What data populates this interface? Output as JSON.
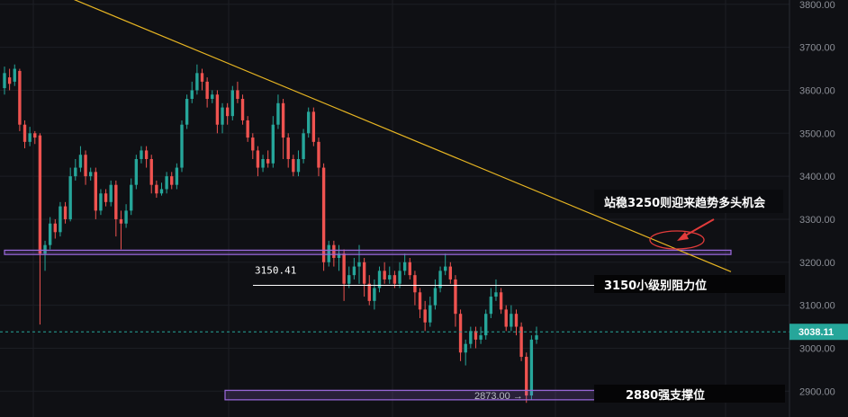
{
  "chart_data": {
    "type": "candlestick",
    "y_axis": {
      "position": "right",
      "ylim": [
        2840,
        3810
      ],
      "ticks": [
        "3800.00",
        "3700.00",
        "3600.00",
        "3500.00",
        "3400.00",
        "3300.00",
        "3200.00",
        "3100.00",
        "3000.00",
        "2900.00"
      ]
    },
    "grid": true,
    "colors": {
      "up": "#26a69a",
      "down": "#ef5350",
      "trendline": "#e6b422",
      "zone_border": "#9c6ade",
      "current_price_tag": "#26a69a",
      "background": "#0f1014"
    },
    "current_price": {
      "value": 3038.11,
      "label": "3038.11"
    },
    "low_marker": {
      "value": 2873.0,
      "label": "2873.00 →"
    },
    "trendline": {
      "from_price": 3820,
      "to_price": 3178
    },
    "zones": [
      {
        "name": "resistance-zone",
        "low": 3218,
        "high": 3228
      },
      {
        "name": "support-zone",
        "low": 2880,
        "high": 2902
      }
    ],
    "level_line": {
      "value": 3150.41,
      "label": "3150.41"
    },
    "annotations": [
      {
        "name": "trend-break-note",
        "text": "站稳3250则迎来趋势多头机会"
      },
      {
        "name": "resistance-note",
        "text": "3150小级别阻力位"
      },
      {
        "name": "support-note",
        "text": "2880强支撑位"
      }
    ],
    "candles": [
      [
        3605,
        3640,
        3655,
        3590
      ],
      [
        3630,
        3615,
        3650,
        3600
      ],
      [
        3620,
        3650,
        3660,
        3610
      ],
      [
        3645,
        3520,
        3650,
        3505
      ],
      [
        3520,
        3480,
        3530,
        3465
      ],
      [
        3480,
        3500,
        3515,
        3470
      ],
      [
        3500,
        3490,
        3505,
        3475
      ],
      [
        3495,
        3220,
        3500,
        3055
      ],
      [
        3220,
        3240,
        3250,
        3180
      ],
      [
        3240,
        3290,
        3305,
        3230
      ],
      [
        3290,
        3270,
        3300,
        3255
      ],
      [
        3270,
        3330,
        3340,
        3260
      ],
      [
        3330,
        3300,
        3340,
        3290
      ],
      [
        3300,
        3400,
        3420,
        3295
      ],
      [
        3400,
        3420,
        3440,
        3390
      ],
      [
        3420,
        3450,
        3470,
        3410
      ],
      [
        3450,
        3400,
        3460,
        3380
      ],
      [
        3400,
        3410,
        3420,
        3390
      ],
      [
        3410,
        3320,
        3420,
        3300
      ],
      [
        3320,
        3360,
        3370,
        3310
      ],
      [
        3360,
        3340,
        3370,
        3330
      ],
      [
        3340,
        3380,
        3390,
        3330
      ],
      [
        3380,
        3300,
        3390,
        3260
      ],
      [
        3300,
        3290,
        3320,
        3230
      ],
      [
        3290,
        3320,
        3335,
        3280
      ],
      [
        3320,
        3380,
        3395,
        3310
      ],
      [
        3380,
        3440,
        3450,
        3370
      ],
      [
        3440,
        3460,
        3470,
        3430
      ],
      [
        3460,
        3440,
        3470,
        3420
      ],
      [
        3440,
        3380,
        3450,
        3360
      ],
      [
        3380,
        3360,
        3390,
        3350
      ],
      [
        3360,
        3370,
        3385,
        3355
      ],
      [
        3370,
        3400,
        3410,
        3360
      ],
      [
        3400,
        3380,
        3410,
        3370
      ],
      [
        3380,
        3420,
        3430,
        3370
      ],
      [
        3420,
        3520,
        3530,
        3410
      ],
      [
        3520,
        3580,
        3590,
        3510
      ],
      [
        3580,
        3600,
        3620,
        3570
      ],
      [
        3600,
        3640,
        3660,
        3590
      ],
      [
        3640,
        3620,
        3650,
        3600
      ],
      [
        3620,
        3580,
        3630,
        3560
      ],
      [
        3580,
        3590,
        3600,
        3570
      ],
      [
        3590,
        3520,
        3600,
        3500
      ],
      [
        3520,
        3560,
        3570,
        3500
      ],
      [
        3560,
        3540,
        3570,
        3520
      ],
      [
        3540,
        3600,
        3610,
        3530
      ],
      [
        3600,
        3580,
        3620,
        3570
      ],
      [
        3580,
        3530,
        3590,
        3520
      ],
      [
        3530,
        3490,
        3540,
        3480
      ],
      [
        3490,
        3460,
        3500,
        3440
      ],
      [
        3460,
        3420,
        3470,
        3400
      ],
      [
        3420,
        3440,
        3450,
        3410
      ],
      [
        3440,
        3430,
        3460,
        3420
      ],
      [
        3430,
        3520,
        3540,
        3420
      ],
      [
        3520,
        3570,
        3590,
        3510
      ],
      [
        3570,
        3490,
        3580,
        3440
      ],
      [
        3490,
        3440,
        3500,
        3420
      ],
      [
        3440,
        3410,
        3450,
        3400
      ],
      [
        3410,
        3440,
        3460,
        3400
      ],
      [
        3440,
        3500,
        3510,
        3430
      ],
      [
        3500,
        3550,
        3560,
        3490
      ],
      [
        3550,
        3480,
        3560,
        3470
      ],
      [
        3480,
        3420,
        3490,
        3400
      ],
      [
        3420,
        3200,
        3430,
        3180
      ],
      [
        3200,
        3240,
        3250,
        3190
      ],
      [
        3240,
        3210,
        3250,
        3190
      ],
      [
        3210,
        3220,
        3240,
        3180
      ],
      [
        3220,
        3150,
        3230,
        3110
      ],
      [
        3150,
        3170,
        3190,
        3140
      ],
      [
        3170,
        3190,
        3210,
        3160
      ],
      [
        3190,
        3200,
        3240,
        3150
      ],
      [
        3200,
        3150,
        3210,
        3120
      ],
      [
        3150,
        3110,
        3170,
        3100
      ],
      [
        3110,
        3140,
        3160,
        3090
      ],
      [
        3140,
        3180,
        3190,
        3130
      ],
      [
        3180,
        3160,
        3200,
        3150
      ],
      [
        3160,
        3170,
        3190,
        3150
      ],
      [
        3170,
        3150,
        3180,
        3140
      ],
      [
        3150,
        3180,
        3200,
        3140
      ],
      [
        3180,
        3200,
        3220,
        3170
      ],
      [
        3200,
        3170,
        3210,
        3160
      ],
      [
        3170,
        3130,
        3180,
        3100
      ],
      [
        3130,
        3090,
        3140,
        3070
      ],
      [
        3090,
        3060,
        3110,
        3040
      ],
      [
        3060,
        3100,
        3120,
        3050
      ],
      [
        3100,
        3140,
        3160,
        3090
      ],
      [
        3140,
        3180,
        3190,
        3130
      ],
      [
        3180,
        3190,
        3220,
        3170
      ],
      [
        3190,
        3160,
        3200,
        3150
      ],
      [
        3160,
        3080,
        3170,
        3050
      ],
      [
        3080,
        2990,
        3090,
        2970
      ],
      [
        2990,
        3010,
        3020,
        2960
      ],
      [
        3010,
        3040,
        3050,
        3000
      ],
      [
        3040,
        3020,
        3050,
        3000
      ],
      [
        3020,
        3030,
        3050,
        3010
      ],
      [
        3030,
        3080,
        3090,
        3020
      ],
      [
        3080,
        3120,
        3140,
        3070
      ],
      [
        3120,
        3130,
        3160,
        3110
      ],
      [
        3130,
        3090,
        3140,
        3080
      ],
      [
        3090,
        3050,
        3100,
        3040
      ],
      [
        3050,
        3080,
        3100,
        3040
      ],
      [
        3080,
        3050,
        3090,
        3030
      ],
      [
        3050,
        2980,
        3060,
        2970
      ],
      [
        2980,
        2890,
        2990,
        2873
      ],
      [
        2890,
        3020,
        3030,
        2880
      ],
      [
        3020,
        3030,
        3050,
        3010
      ]
    ]
  }
}
